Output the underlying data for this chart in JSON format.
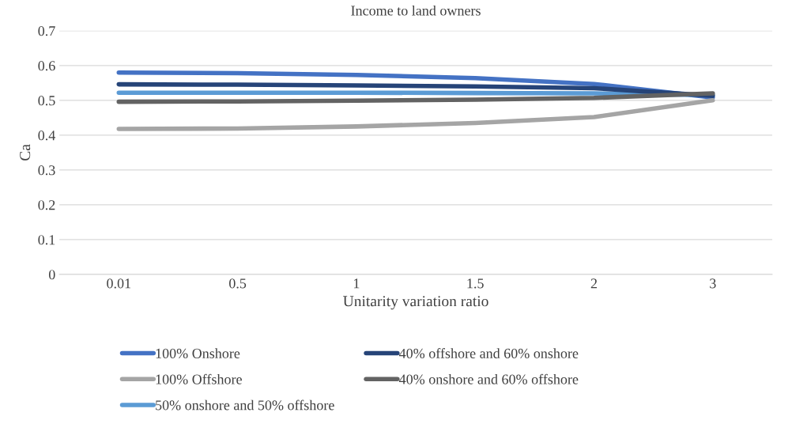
{
  "chart_data": {
    "type": "line",
    "title": "Income to land owners",
    "xlabel": "Unitarity variation ratio",
    "ylabel": "Ca",
    "categories": [
      "0.01",
      "0.5",
      "1",
      "1.5",
      "2",
      "3"
    ],
    "series": [
      {
        "name": "100% Onshore",
        "color": "#4472c4",
        "values": [
          0.58,
          0.578,
          0.573,
          0.564,
          0.547,
          0.508
        ]
      },
      {
        "name": "100% Offshore",
        "color": "#a5a5a5",
        "values": [
          0.418,
          0.419,
          0.425,
          0.435,
          0.452,
          0.5
        ]
      },
      {
        "name": "50% onshore and 50% offshore",
        "color": "#5b9bd5",
        "values": [
          0.522,
          0.522,
          0.522,
          0.521,
          0.52,
          0.515
        ]
      },
      {
        "name": "40% offshore and 60% onshore",
        "color": "#264478",
        "values": [
          0.546,
          0.545,
          0.543,
          0.54,
          0.535,
          0.513
        ]
      },
      {
        "name": "40% onshore and 60% offshore",
        "color": "#636363",
        "values": [
          0.496,
          0.497,
          0.499,
          0.502,
          0.507,
          0.52
        ]
      }
    ],
    "ylim": [
      0,
      0.7
    ],
    "yticks": [
      {
        "value": 0,
        "label": "0"
      },
      0.1,
      0.2,
      0.3,
      0.4,
      0.5,
      0.6,
      0.7
    ],
    "grid": "y",
    "legend": "bottom",
    "marker": "none",
    "line_style": "solid"
  }
}
